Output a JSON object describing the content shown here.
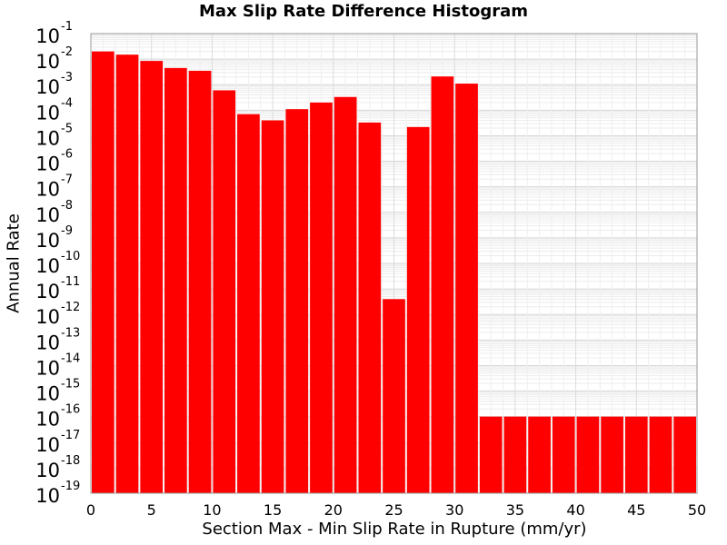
{
  "chart_data": {
    "type": "bar",
    "title": "Max Slip Rate Difference Histogram",
    "xlabel": "Section Max - Min Slip Rate in Rupture (mm/yr)",
    "ylabel": "Annual Rate",
    "xlim": [
      0,
      50
    ],
    "ylim_exponent": [
      -19,
      -1
    ],
    "log_y": true,
    "grid": true,
    "bin_width": 2,
    "x": [
      1,
      3,
      5,
      7,
      9,
      11,
      13,
      15,
      17,
      19,
      21,
      23,
      25,
      27,
      29,
      31,
      33,
      35,
      37,
      39,
      41,
      43,
      45,
      47,
      49
    ],
    "values": [
      0.02,
      0.015,
      0.0085,
      0.0045,
      0.0035,
      0.0006,
      7e-05,
      4e-05,
      0.00011,
      0.0002,
      0.00033,
      3.3e-05,
      4e-12,
      2.2e-05,
      0.0021,
      0.0011,
      1e-16,
      1e-16,
      1e-16,
      1e-16,
      1e-16,
      1e-16,
      1e-16,
      1e-16,
      1e-16
    ],
    "x_tick_labels": [
      "0",
      "5",
      "10",
      "15",
      "20",
      "25",
      "30",
      "35",
      "40",
      "45",
      "50"
    ],
    "y_tick_base": "10",
    "y_tick_exponents": [
      "-1",
      "-2",
      "-3",
      "-4",
      "-5",
      "-6",
      "-7",
      "-8",
      "-9",
      "-10",
      "-11",
      "-12",
      "-13",
      "-14",
      "-15",
      "-16",
      "-17",
      "-18",
      "-19"
    ],
    "bar_color": "#ff0000"
  }
}
